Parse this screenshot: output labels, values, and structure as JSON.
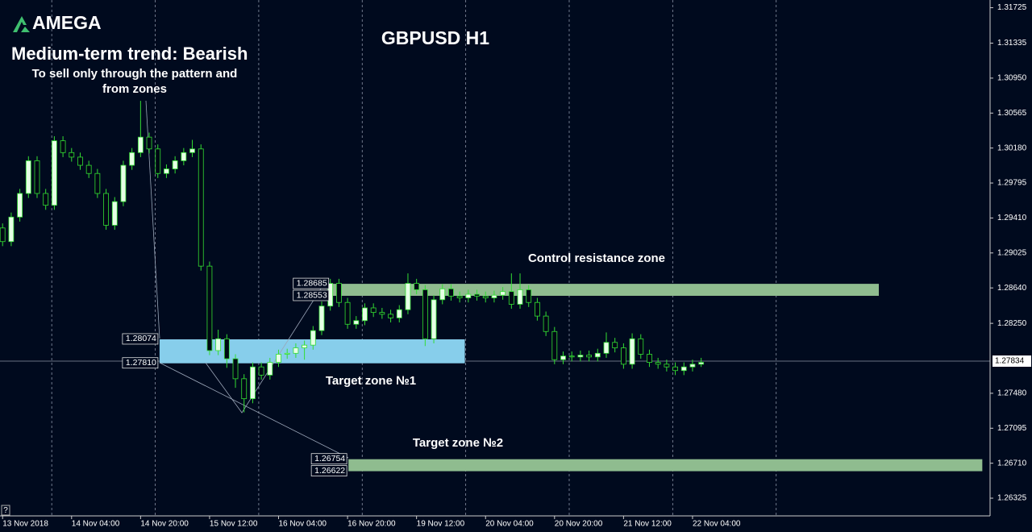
{
  "header": {
    "logo": "AMEGA",
    "trend": "Medium-term trend: Bearish",
    "note_line1": "To sell only through the pattern and",
    "note_line2": "from zones",
    "help": "?"
  },
  "chart_data": {
    "type": "candlestick",
    "title": "GBPUSD H1",
    "x": [
      0,
      1,
      2,
      3,
      4,
      5,
      6,
      7,
      8,
      9,
      10,
      11,
      12,
      13,
      14,
      15,
      16,
      17,
      18,
      19,
      20,
      21,
      22,
      23,
      24,
      25,
      26,
      27,
      28,
      29,
      30,
      31,
      32,
      33,
      34,
      35,
      36,
      37,
      38,
      39,
      40,
      41,
      42,
      43,
      44,
      45,
      46,
      47,
      48,
      49,
      50,
      51,
      52,
      53,
      54,
      55,
      56,
      57,
      58,
      59,
      60,
      61,
      62,
      63,
      64,
      65,
      66,
      67,
      68,
      69,
      70,
      71,
      72,
      73,
      74,
      75,
      76,
      77,
      78,
      79,
      80,
      81
    ],
    "open": [
      1.293,
      1.2915,
      1.2942,
      1.2968,
      1.3004,
      1.2968,
      1.2955,
      1.3026,
      1.3013,
      1.3008,
      1.2999,
      1.299,
      1.2968,
      1.2933,
      1.2959,
      1.2999,
      1.3013,
      1.303,
      1.3017,
      1.299,
      1.2995,
      1.3004,
      1.3013,
      1.3017,
      1.2888,
      1.2795,
      1.2808,
      1.2786,
      1.2764,
      1.2742,
      1.2777,
      1.2768,
      1.2782,
      1.2791,
      1.2792,
      1.2798,
      1.2801,
      1.2817,
      1.2844,
      1.2869,
      1.2848,
      1.2824,
      1.2828,
      1.2842,
      1.2837,
      1.2835,
      1.2831,
      1.284,
      1.2869,
      1.2862,
      1.2808,
      1.2851,
      1.2863,
      1.2855,
      1.2853,
      1.2857,
      1.2855,
      1.2853,
      1.2856,
      1.286,
      1.2846,
      1.2862,
      1.2848,
      1.2833,
      1.2816,
      1.2785,
      1.2789,
      1.2788,
      1.279,
      1.2788,
      1.2792,
      1.2804,
      1.2798,
      1.278,
      1.2808,
      1.2791,
      1.2782,
      1.278,
      1.2777,
      1.2773,
      1.2777,
      1.278
    ],
    "high": [
      1.2935,
      1.2947,
      1.2973,
      1.3009,
      1.3009,
      1.2973,
      1.3031,
      1.3031,
      1.3018,
      1.3013,
      1.3004,
      1.2995,
      1.2973,
      1.2964,
      1.3004,
      1.3018,
      1.307,
      1.3035,
      1.3022,
      1.3,
      1.3009,
      1.3018,
      1.3027,
      1.3022,
      1.2893,
      1.2818,
      1.2813,
      1.2791,
      1.2769,
      1.2782,
      1.2782,
      1.2787,
      1.2796,
      1.2797,
      1.2803,
      1.2806,
      1.2822,
      1.2849,
      1.2874,
      1.2874,
      1.2853,
      1.2833,
      1.2847,
      1.2847,
      1.2842,
      1.284,
      1.2845,
      1.288,
      1.2874,
      1.2867,
      1.2856,
      1.2868,
      1.2868,
      1.286,
      1.2862,
      1.2862,
      1.286,
      1.2861,
      1.2865,
      1.288,
      1.288,
      1.2867,
      1.2853,
      1.2838,
      1.2821,
      1.2794,
      1.2794,
      1.2795,
      1.2795,
      1.2797,
      1.2815,
      1.2809,
      1.2803,
      1.2814,
      1.2813,
      1.2796,
      1.2787,
      1.2785,
      1.2782,
      1.2782,
      1.2785,
      1.2787
    ],
    "low": [
      1.291,
      1.291,
      1.2937,
      1.2963,
      1.2963,
      1.295,
      1.295,
      1.3008,
      1.3003,
      1.2994,
      1.2985,
      1.2963,
      1.2928,
      1.2928,
      1.2954,
      1.2994,
      1.3008,
      1.3012,
      1.2985,
      1.2985,
      1.299,
      1.2999,
      1.3008,
      1.2883,
      1.279,
      1.279,
      1.2776,
      1.2754,
      1.2727,
      1.2737,
      1.2763,
      1.2763,
      1.2777,
      1.2786,
      1.2787,
      1.2785,
      1.2796,
      1.2812,
      1.2839,
      1.2843,
      1.2819,
      1.2819,
      1.2823,
      1.2832,
      1.283,
      1.2826,
      1.2826,
      1.2835,
      1.2857,
      1.28,
      1.2803,
      1.2846,
      1.285,
      1.2848,
      1.2848,
      1.285,
      1.2848,
      1.2848,
      1.2851,
      1.2841,
      1.2841,
      1.2843,
      1.2828,
      1.2811,
      1.278,
      1.278,
      1.2783,
      1.2783,
      1.2783,
      1.2783,
      1.2787,
      1.2793,
      1.2775,
      1.2775,
      1.2786,
      1.2777,
      1.2775,
      1.2772,
      1.2768,
      1.2768,
      1.2772,
      1.2777
    ],
    "close": [
      1.2915,
      1.2942,
      1.2968,
      1.3004,
      1.2968,
      1.2955,
      1.3026,
      1.3013,
      1.3008,
      1.2999,
      1.299,
      1.2968,
      1.2933,
      1.2959,
      1.2999,
      1.3013,
      1.303,
      1.3017,
      1.299,
      1.2995,
      1.3004,
      1.3013,
      1.3017,
      1.2888,
      1.2795,
      1.2808,
      1.2786,
      1.2764,
      1.2742,
      1.2777,
      1.2768,
      1.2782,
      1.2791,
      1.2792,
      1.2798,
      1.2801,
      1.2817,
      1.2844,
      1.2869,
      1.2848,
      1.2824,
      1.2828,
      1.2842,
      1.2837,
      1.2835,
      1.2831,
      1.284,
      1.2869,
      1.2862,
      1.2808,
      1.2851,
      1.2863,
      1.2855,
      1.2853,
      1.2857,
      1.2855,
      1.2853,
      1.2856,
      1.286,
      1.2846,
      1.2862,
      1.2848,
      1.2833,
      1.2816,
      1.2785,
      1.2789,
      1.2788,
      1.279,
      1.2788,
      1.2792,
      1.2804,
      1.2798,
      1.278,
      1.2808,
      1.2791,
      1.2782,
      1.278,
      1.2777,
      1.2773,
      1.2777,
      1.278,
      1.2782
    ],
    "bull_color": "#e6ffe6",
    "bear_color": "#000814",
    "wick_color": "#33dd33",
    "xlim": [
      -0.3,
      114.5
    ],
    "xticks": [
      {
        "value": 0,
        "label": "13 Nov 2018"
      },
      {
        "value": 8,
        "label": "14 Nov 04:00"
      },
      {
        "value": 16,
        "label": "14 Nov 20:00"
      },
      {
        "value": 24,
        "label": "15 Nov 12:00"
      },
      {
        "value": 32,
        "label": "16 Nov 04:00"
      },
      {
        "value": 40,
        "label": "16 Nov 20:00"
      },
      {
        "value": 48,
        "label": "19 Nov 12:00"
      },
      {
        "value": 56,
        "label": "20 Nov 04:00"
      },
      {
        "value": 64,
        "label": "20 Nov 20:00"
      },
      {
        "value": 72,
        "label": "21 Nov 12:00"
      },
      {
        "value": 80,
        "label": "22 Nov 04:00"
      }
    ],
    "day_separators": [
      5.7,
      17.7,
      29.7,
      41.7,
      53.7,
      65.7,
      77.7,
      89.7
    ],
    "ylim": [
      1.2613,
      1.3181
    ],
    "yticks": [
      1.31725,
      1.31335,
      {
        "value": 1.3095,
        "label": "1.30950"
      },
      1.30565,
      {
        "value": 1.3018,
        "label": "1.30180"
      },
      1.29795,
      {
        "value": 1.2941,
        "label": "1.29410"
      },
      1.29025,
      {
        "value": 1.2864,
        "label": "1.28640"
      },
      {
        "value": 1.2825,
        "label": "1.28250"
      },
      {
        "value": 1.2748,
        "label": "1.27480"
      },
      1.27095,
      {
        "value": 1.2671,
        "label": "1.26710"
      },
      1.26325
    ],
    "current_price": 1.27834,
    "zones": [
      {
        "name": "Target zone №1",
        "high": 1.28074,
        "low": {
          "value": 1.2781,
          "label": "1.27810"
        },
        "start": 18.2,
        "end": 53.6,
        "color": "#87ceeb"
      },
      {
        "name": "Control resistance zone",
        "high": 1.28685,
        "low": 1.28553,
        "start": 38.0,
        "end": 101.6,
        "color": "#8fbc8f"
      },
      {
        "name": "Target zone №2",
        "high": 1.26754,
        "low": 1.26622,
        "start": 40.1,
        "end": 113.6,
        "color": "#8fbc8f"
      }
    ]
  }
}
